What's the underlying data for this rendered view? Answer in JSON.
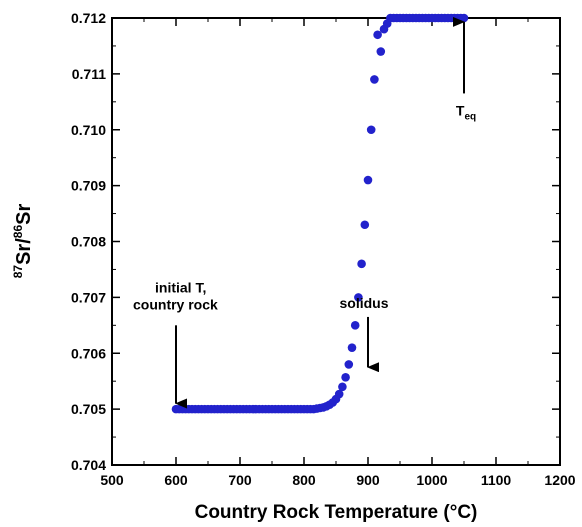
{
  "chart_data": {
    "type": "scatter",
    "xlabel": "Country Rock Temperature (°C)",
    "ylabel": {
      "sup1": "87",
      "main1": "Sr/",
      "sup2": "86",
      "main2": "Sr"
    },
    "xlim": [
      500,
      1200
    ],
    "ylim": [
      0.704,
      0.712
    ],
    "xticks": [
      500,
      600,
      700,
      800,
      900,
      1000,
      1100,
      1200
    ],
    "yticks": [
      "0.704",
      "0.705",
      "0.706",
      "0.707",
      "0.708",
      "0.709",
      "0.710",
      "0.711",
      "0.712"
    ],
    "grid": false,
    "marker_color": "#2222cc",
    "series": [
      {
        "x": [
          600,
          605,
          610,
          615,
          620,
          625,
          630,
          635,
          640,
          645,
          650,
          655,
          660,
          665,
          670,
          675,
          680,
          685,
          690,
          695,
          700,
          705,
          710,
          715,
          720,
          725,
          730,
          735,
          740,
          745,
          750,
          755,
          760,
          765,
          770,
          775,
          780,
          785,
          790,
          795,
          800,
          805,
          810,
          815,
          820,
          825,
          830,
          835,
          840,
          845,
          850,
          855,
          860,
          865,
          870,
          875,
          880,
          885,
          890,
          895,
          900,
          905,
          910,
          915,
          920,
          925,
          930,
          935,
          940,
          945,
          950,
          955,
          960,
          965,
          970,
          975,
          980,
          985,
          990,
          995,
          1000,
          1005,
          1010,
          1015,
          1020,
          1025,
          1030,
          1035,
          1040,
          1045,
          1050
        ],
        "y": [
          0.705,
          0.705,
          0.705,
          0.705,
          0.705,
          0.705,
          0.705,
          0.705,
          0.705,
          0.705,
          0.705,
          0.705,
          0.705,
          0.705,
          0.705,
          0.705,
          0.705,
          0.705,
          0.705,
          0.705,
          0.705,
          0.705,
          0.705,
          0.705,
          0.705,
          0.705,
          0.705,
          0.705,
          0.705,
          0.705,
          0.705,
          0.705,
          0.705,
          0.705,
          0.705,
          0.705,
          0.705,
          0.705,
          0.705,
          0.705,
          0.705,
          0.705,
          0.705,
          0.705,
          0.70501,
          0.70502,
          0.70503,
          0.70505,
          0.70508,
          0.70512,
          0.70518,
          0.70527,
          0.7054,
          0.70557,
          0.7058,
          0.7061,
          0.7065,
          0.707,
          0.7076,
          0.7083,
          0.7091,
          0.71,
          0.7109,
          0.7117,
          0.7114,
          0.7118,
          0.7119,
          0.712,
          0.712,
          0.712,
          0.712,
          0.712,
          0.712,
          0.712,
          0.712,
          0.712,
          0.712,
          0.712,
          0.712,
          0.712,
          0.712,
          0.712,
          0.712,
          0.712,
          0.712,
          0.712,
          0.712,
          0.712,
          0.712,
          0.712,
          0.712
        ]
      }
    ],
    "annotations": [
      {
        "id": "initial",
        "lines": [
          "initial T,",
          "country rock"
        ],
        "x": 600,
        "y_from": 0.7065,
        "y_to": 0.7051
      },
      {
        "id": "solidus",
        "lines": [
          "solidus"
        ],
        "x": 900,
        "y_from": 0.70665,
        "y_to": 0.70575
      },
      {
        "id": "teq",
        "main": "T",
        "sub": "eq",
        "x": 1050,
        "y_from": 0.71065,
        "y_to": 0.71193
      }
    ]
  }
}
